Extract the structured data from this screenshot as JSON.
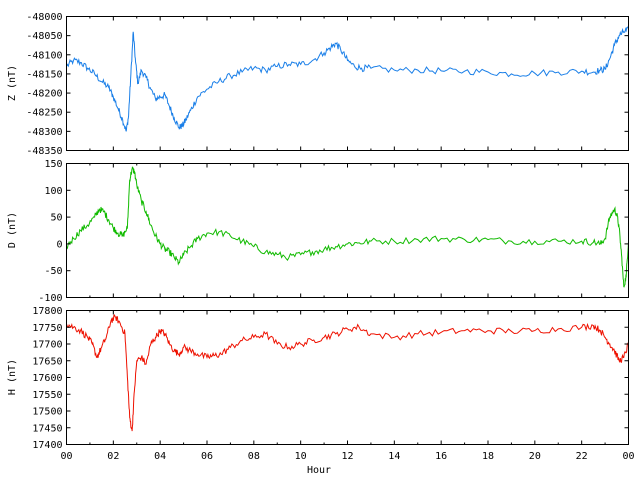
{
  "chart_data": {
    "type": "line",
    "xlabel": "Hour",
    "x_ticks": [
      "00",
      "02",
      "04",
      "06",
      "08",
      "10",
      "12",
      "14",
      "16",
      "18",
      "20",
      "22",
      "00"
    ],
    "x_range": [
      0,
      24
    ],
    "panels": [
      {
        "ylabel": "Z (nT)",
        "color": "#1a7fe8",
        "ylim": [
          -48350,
          -48000
        ],
        "y_ticks": [
          "-48000",
          "-48050",
          "-48100",
          "-48150",
          "-48200",
          "-48250",
          "-48300",
          "-48350"
        ],
        "series": [
          {
            "x": [
              0,
              0.3,
              0.6,
              0.9,
              1.2,
              1.5,
              1.8,
              2.0,
              2.2,
              2.4,
              2.55,
              2.65,
              2.75,
              2.85,
              2.95,
              3.05,
              3.2,
              3.4,
              3.6,
              3.8,
              4.0,
              4.2,
              4.4,
              4.6,
              4.8,
              4.95,
              5.1,
              5.3,
              5.6,
              6.0,
              6.5,
              7.0,
              7.5,
              8.0,
              8.5,
              9.0,
              9.5,
              10.0,
              10.5,
              11.0,
              11.3,
              11.5,
              11.7,
              12.0,
              12.3,
              12.6,
              13.0,
              14.0,
              15.0,
              16.0,
              17.0,
              18.0,
              19.0,
              20.0,
              21.0,
              22.0,
              22.5,
              22.8,
              23.0,
              23.2,
              23.4,
              23.6,
              23.8,
              24.0
            ],
            "values": [
              -48130,
              -48115,
              -48120,
              -48135,
              -48150,
              -48170,
              -48185,
              -48210,
              -48240,
              -48270,
              -48300,
              -48260,
              -48150,
              -48040,
              -48120,
              -48175,
              -48140,
              -48160,
              -48190,
              -48215,
              -48210,
              -48205,
              -48235,
              -48265,
              -48290,
              -48285,
              -48270,
              -48245,
              -48210,
              -48190,
              -48170,
              -48155,
              -48145,
              -48135,
              -48140,
              -48130,
              -48125,
              -48125,
              -48115,
              -48095,
              -48080,
              -48070,
              -48085,
              -48115,
              -48130,
              -48135,
              -48135,
              -48140,
              -48140,
              -48142,
              -48143,
              -48145,
              -48150,
              -48148,
              -48145,
              -48143,
              -48145,
              -48140,
              -48138,
              -48110,
              -48075,
              -48050,
              -48040,
              -48035
            ]
          }
        ]
      },
      {
        "ylabel": "D (nT)",
        "color": "#11bb00",
        "ylim": [
          -100,
          150
        ],
        "y_ticks": [
          "150",
          "100",
          "50",
          "0",
          "-50",
          "-100"
        ],
        "series": [
          {
            "x": [
              0,
              0.3,
              0.6,
              0.9,
              1.2,
              1.4,
              1.6,
              1.8,
              2.0,
              2.2,
              2.4,
              2.6,
              2.7,
              2.8,
              2.9,
              3.0,
              3.2,
              3.4,
              3.6,
              3.8,
              4.0,
              4.2,
              4.4,
              4.6,
              4.8,
              5.0,
              5.3,
              5.6,
              6.0,
              6.5,
              7.0,
              7.5,
              8.0,
              8.5,
              9.0,
              9.5,
              10.0,
              10.5,
              11.0,
              11.5,
              12.0,
              12.5,
              13.0,
              14.0,
              15.0,
              16.0,
              17.0,
              18.0,
              19.0,
              20.0,
              21.0,
              22.0,
              22.5,
              22.8,
              23.0,
              23.2,
              23.4,
              23.5,
              23.6,
              23.7,
              23.8,
              23.9,
              24.0
            ],
            "values": [
              -5,
              10,
              25,
              35,
              50,
              65,
              60,
              45,
              30,
              20,
              15,
              30,
              120,
              140,
              135,
              110,
              80,
              60,
              35,
              15,
              0,
              -10,
              -15,
              -25,
              -35,
              -20,
              -5,
              10,
              20,
              22,
              15,
              5,
              -5,
              -15,
              -20,
              -25,
              -20,
              -15,
              -10,
              -5,
              0,
              2,
              5,
              5,
              8,
              10,
              8,
              8,
              5,
              5,
              5,
              5,
              3,
              0,
              10,
              50,
              65,
              55,
              30,
              -20,
              -80,
              -60,
              5
            ]
          }
        ]
      },
      {
        "ylabel": "H (nT)",
        "color": "#ee1100",
        "ylim": [
          17400,
          17800
        ],
        "y_ticks": [
          "17800",
          "17750",
          "17700",
          "17650",
          "17600",
          "17550",
          "17500",
          "17450",
          "17400"
        ],
        "series": [
          {
            "x": [
              0,
              0.3,
              0.6,
              0.9,
              1.1,
              1.3,
              1.5,
              1.7,
              1.9,
              2.1,
              2.3,
              2.5,
              2.6,
              2.7,
              2.8,
              2.9,
              3.0,
              3.2,
              3.4,
              3.6,
              3.8,
              4.0,
              4.2,
              4.4,
              4.6,
              4.8,
              5.0,
              5.3,
              5.6,
              6.0,
              6.3,
              6.6,
              7.0,
              7.5,
              8.0,
              8.5,
              9.0,
              9.5,
              10.0,
              10.5,
              11.0,
              11.5,
              12.0,
              12.5,
              13.0,
              14.0,
              15.0,
              16.0,
              17.0,
              18.0,
              19.0,
              20.0,
              21.0,
              22.0,
              22.5,
              22.8,
              23.0,
              23.2,
              23.4,
              23.6,
              23.8,
              24.0
            ],
            "values": [
              17760,
              17750,
              17740,
              17720,
              17700,
              17660,
              17690,
              17720,
              17770,
              17780,
              17760,
              17730,
              17600,
              17480,
              17440,
              17560,
              17650,
              17660,
              17640,
              17700,
              17720,
              17740,
              17730,
              17700,
              17680,
              17670,
              17690,
              17680,
              17670,
              17660,
              17665,
              17670,
              17690,
              17710,
              17720,
              17730,
              17700,
              17690,
              17700,
              17710,
              17720,
              17730,
              17745,
              17750,
              17730,
              17720,
              17730,
              17735,
              17740,
              17740,
              17738,
              17740,
              17745,
              17750,
              17755,
              17740,
              17720,
              17700,
              17680,
              17650,
              17660,
              17700
            ]
          }
        ]
      }
    ]
  }
}
